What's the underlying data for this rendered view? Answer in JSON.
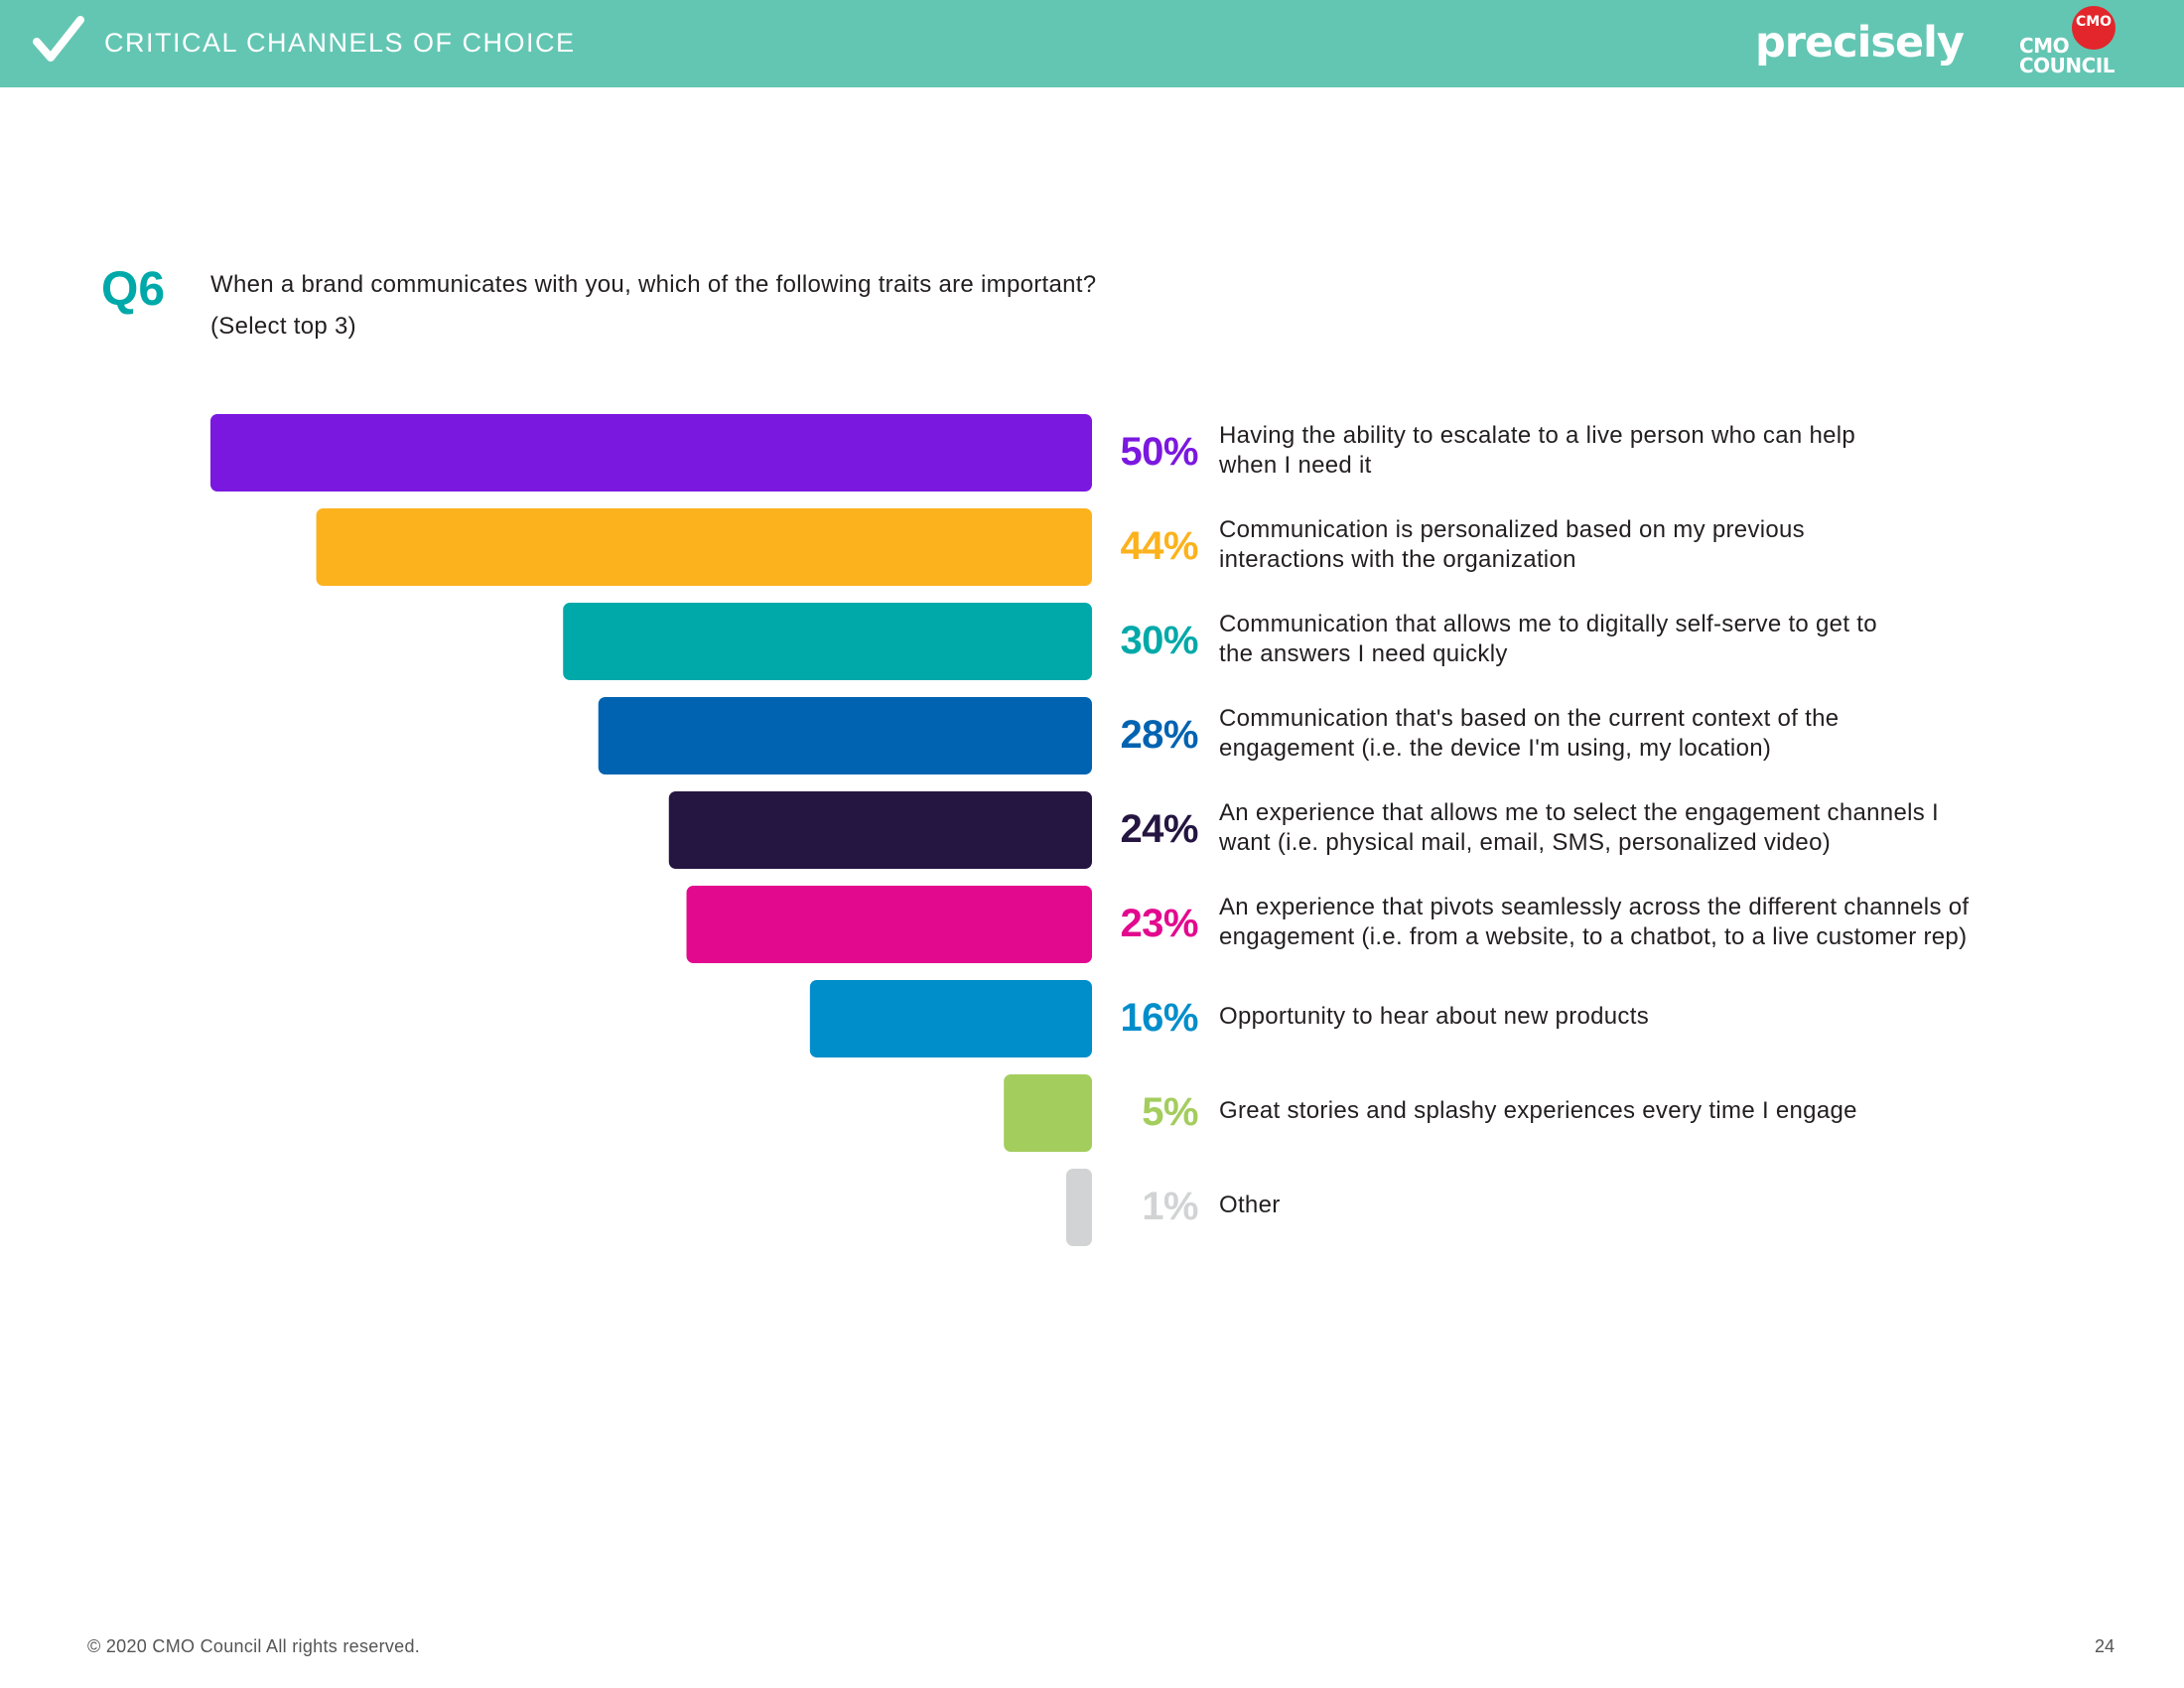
{
  "header": {
    "title": "CRITICAL CHANNELS OF CHOICE",
    "brand": "precisely",
    "council_logo_top": "CMO",
    "council_logo_line1": "CMO",
    "council_logo_line2": "COUNCIL"
  },
  "question": {
    "number": "Q6",
    "text": "When a brand communicates with you, which of the following traits are important?",
    "note": "(Select top 3)"
  },
  "chart_data": {
    "type": "bar",
    "orientation": "horizontal",
    "categories": [
      "Having the ability to escalate to a live person who can help\nwhen I need it",
      "Communication is personalized based on my previous\ninteractions with the organization",
      "Communication that allows me to digitally self-serve to get to\nthe answers I need quickly",
      "Communication that's based on the current context of the\nengagement (i.e. the device I'm using, my location)",
      "An experience that allows me to select the engagement channels I\nwant (i.e. physical mail, email, SMS, personalized video)",
      "An experience that pivots seamlessly across the different channels of\nengagement (i.e. from a website, to a chatbot, to a live customer rep)",
      "Opportunity to hear about new products",
      "Great stories and splashy experiences every time I engage",
      "Other"
    ],
    "values": [
      50,
      44,
      30,
      28,
      24,
      23,
      16,
      5,
      1
    ],
    "value_labels": [
      "50%",
      "44%",
      "30%",
      "28%",
      "24%",
      "23%",
      "16%",
      "5%",
      "1%"
    ],
    "colors": [
      "#7b18e0",
      "#fcb21d",
      "#00a9a9",
      "#0063b1",
      "#241541",
      "#e3098e",
      "#008ecb",
      "#a3cd5d",
      "#d1d3d4"
    ],
    "xlim": [
      0,
      50
    ],
    "grid": false,
    "legend": "none"
  },
  "footer": {
    "copyright": "© 2020 CMO Council  All rights reserved.",
    "page": "24"
  }
}
